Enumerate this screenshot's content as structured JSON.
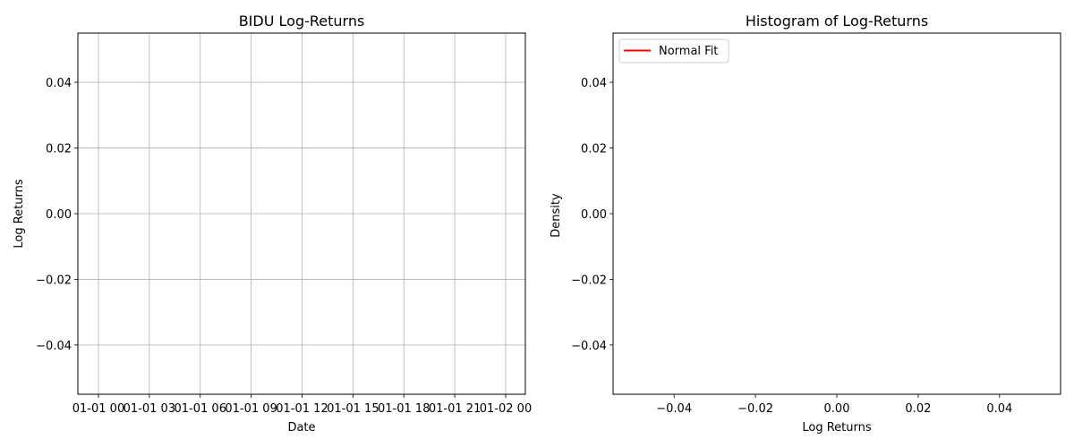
{
  "chart_data": [
    {
      "type": "line",
      "title": "BIDU Log-Returns",
      "xlabel": "Date",
      "ylabel": "Log Returns",
      "x_tick_labels": [
        "01-01 00",
        "01-01 03",
        "01-01 06",
        "01-01 09",
        "01-01 12",
        "01-01 15",
        "01-01 18",
        "01-01 21",
        "01-02 00"
      ],
      "y_ticks": [
        0.04,
        0.02,
        0.0,
        -0.02,
        -0.04
      ],
      "y_tick_labels": [
        "0.04",
        "0.02",
        "0.00",
        "−0.02",
        "−0.04"
      ],
      "ylim": [
        -0.055,
        0.055
      ],
      "grid": true,
      "series": [],
      "x": [],
      "values": []
    },
    {
      "type": "bar",
      "title": "Histogram of Log-Returns",
      "xlabel": "Log Returns",
      "ylabel": "Density",
      "x_ticks": [
        -0.04,
        -0.02,
        0.0,
        0.02,
        0.04
      ],
      "x_tick_labels": [
        "−0.04",
        "−0.02",
        "0.00",
        "0.02",
        "0.04"
      ],
      "y_ticks": [
        0.04,
        0.02,
        0.0,
        -0.02,
        -0.04
      ],
      "y_tick_labels": [
        "0.04",
        "0.02",
        "0.00",
        "−0.02",
        "−0.04"
      ],
      "xlim": [
        -0.055,
        0.055
      ],
      "ylim": [
        -0.055,
        0.055
      ],
      "grid": false,
      "legend_position": "upper-left",
      "series": [
        {
          "name": "Normal Fit",
          "color": "#ff0000",
          "values": []
        }
      ]
    }
  ]
}
